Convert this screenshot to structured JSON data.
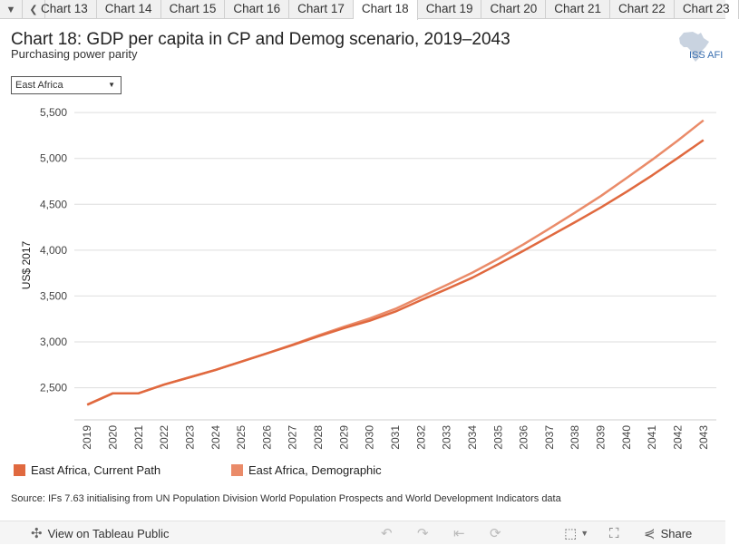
{
  "tabs": [
    "Chart 13",
    "Chart 14",
    "Chart 15",
    "Chart 16",
    "Chart 17",
    "Chart 18",
    "Chart 19",
    "Chart 20",
    "Chart 21",
    "Chart 22",
    "Chart 23"
  ],
  "active_tab": "Chart 18",
  "header": {
    "title": "Chart 18: GDP per capita in CP and Demog scenario, 2019–2043",
    "subtitle": "Purchasing power parity",
    "logo_text": "ISS AFI"
  },
  "filter": {
    "selected": "East Africa"
  },
  "source": "Source: IFs 7.63 initialising from UN Population Division World Population Prospects and World Development Indicators data",
  "footer": {
    "view_label": "View on Tableau Public",
    "share_label": "Share"
  },
  "colors": {
    "current_path": "#e0693f",
    "demographic": "#ea8b69",
    "grid": "#dedede"
  },
  "chart_data": {
    "type": "line",
    "title": "Chart 18: GDP per capita in CP and Demog scenario, 2019–2043",
    "subtitle": "Purchasing power parity",
    "xlabel": "",
    "ylabel": "US$ 2017",
    "ylim": [
      2150,
      5600
    ],
    "yticks": [
      2500,
      3000,
      3500,
      4000,
      4500,
      5000,
      5500
    ],
    "ytick_labels": [
      "2,500",
      "3,000",
      "3,500",
      "4,000",
      "4,500",
      "5,000",
      "5,500"
    ],
    "x": [
      "2019",
      "2020",
      "2021",
      "2022",
      "2023",
      "2024",
      "2025",
      "2026",
      "2027",
      "2028",
      "2029",
      "2030",
      "2031",
      "2032",
      "2033",
      "2034",
      "2035",
      "2036",
      "2037",
      "2038",
      "2039",
      "2040",
      "2041",
      "2042",
      "2043"
    ],
    "series": [
      {
        "name": "East Africa, Current Path",
        "values": [
          2315,
          2440,
          2440,
          2535,
          2615,
          2695,
          2785,
          2875,
          2965,
          3060,
          3150,
          3230,
          3330,
          3455,
          3575,
          3700,
          3845,
          3995,
          4150,
          4305,
          4465,
          4635,
          4815,
          5005,
          5200
        ]
      },
      {
        "name": "East Africa, Demographic",
        "values": [
          2315,
          2440,
          2440,
          2535,
          2615,
          2695,
          2785,
          2875,
          2970,
          3070,
          3165,
          3255,
          3360,
          3490,
          3620,
          3755,
          3905,
          4065,
          4235,
          4410,
          4590,
          4785,
          4985,
          5195,
          5415
        ]
      }
    ],
    "legend_position": "bottom"
  }
}
